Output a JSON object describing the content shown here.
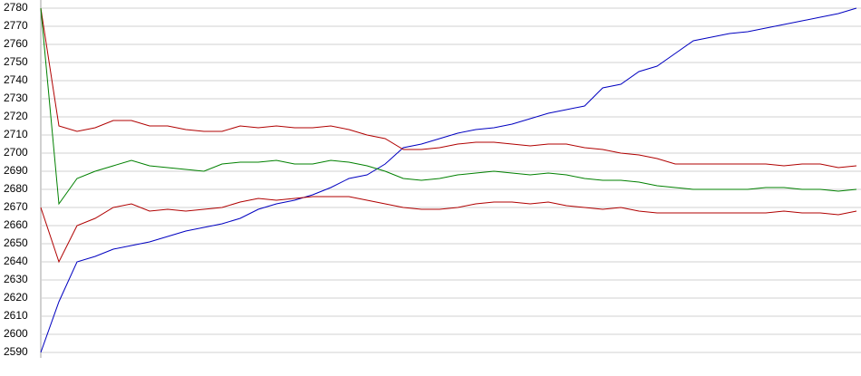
{
  "chart_data": {
    "type": "line",
    "ylim": [
      2590,
      2780
    ],
    "yticks": [
      2590,
      2600,
      2610,
      2620,
      2630,
      2640,
      2650,
      2660,
      2670,
      2680,
      2690,
      2700,
      2710,
      2720,
      2730,
      2740,
      2750,
      2760,
      2770,
      2780
    ],
    "grid": true,
    "series": [
      {
        "color": "#0000c0",
        "values": [
          2590,
          2618,
          2640,
          2643,
          2647,
          2649,
          2651,
          2654,
          2657,
          2659,
          2661,
          2664,
          2669,
          2672,
          2674,
          2677,
          2681,
          2686,
          2688,
          2694,
          2703,
          2705,
          2708,
          2711,
          2713,
          2714,
          2716,
          2719,
          2722,
          2724,
          2726,
          2736,
          2738,
          2745,
          2748,
          2755,
          2762,
          2764,
          2766,
          2767,
          2769,
          2771,
          2773,
          2775,
          2777,
          2780
        ]
      },
      {
        "color": "#b00000",
        "values": [
          2780,
          2715,
          2712,
          2714,
          2718,
          2718,
          2715,
          2715,
          2713,
          2712,
          2712,
          2715,
          2714,
          2715,
          2714,
          2714,
          2715,
          2713,
          2710,
          2708,
          2702,
          2702,
          2703,
          2705,
          2706,
          2706,
          2705,
          2704,
          2705,
          2705,
          2703,
          2702,
          2700,
          2699,
          2697,
          2694,
          2694,
          2694,
          2694,
          2694,
          2694,
          2693,
          2694,
          2694,
          2692,
          2693
        ]
      },
      {
        "color": "#008000",
        "values": [
          2780,
          2672,
          2686,
          2690,
          2693,
          2696,
          2693,
          2692,
          2691,
          2690,
          2694,
          2695,
          2695,
          2696,
          2694,
          2694,
          2696,
          2695,
          2693,
          2690,
          2686,
          2685,
          2686,
          2688,
          2689,
          2690,
          2689,
          2688,
          2689,
          2688,
          2686,
          2685,
          2685,
          2684,
          2682,
          2681,
          2680,
          2680,
          2680,
          2680,
          2681,
          2681,
          2680,
          2680,
          2679,
          2680
        ]
      },
      {
        "color": "#b00000",
        "values": [
          2670,
          2640,
          2660,
          2664,
          2670,
          2672,
          2668,
          2669,
          2668,
          2669,
          2670,
          2673,
          2675,
          2674,
          2675,
          2676,
          2676,
          2676,
          2674,
          2672,
          2670,
          2669,
          2669,
          2670,
          2672,
          2673,
          2673,
          2672,
          2673,
          2671,
          2670,
          2669,
          2670,
          2668,
          2667,
          2667,
          2667,
          2667,
          2667,
          2667,
          2667,
          2668,
          2667,
          2667,
          2666,
          2668
        ]
      }
    ]
  }
}
